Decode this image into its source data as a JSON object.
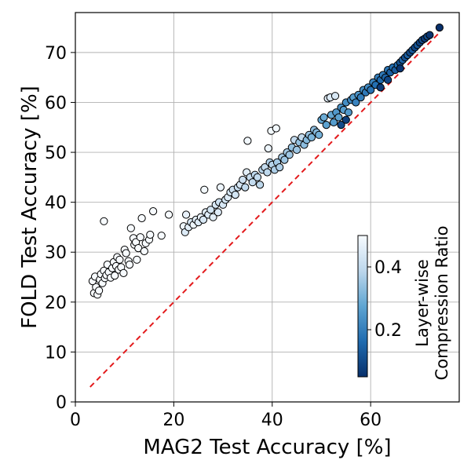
{
  "chart_data": {
    "type": "scatter",
    "title": "",
    "xlabel": "MAG2 Test Accuracy [%]",
    "ylabel": "FOLD Test Accuracy [%]",
    "xlim": [
      0,
      78
    ],
    "ylim": [
      0,
      78
    ],
    "xticks": [
      0,
      20,
      40,
      60
    ],
    "yticks": [
      0,
      10,
      20,
      30,
      40,
      50,
      60,
      70
    ],
    "grid": true,
    "reference_line": {
      "name": "y = x",
      "x": [
        3,
        74
      ],
      "y": [
        3,
        74
      ],
      "color": "#e31a1c",
      "style": "dashed"
    },
    "colorbar": {
      "label": "Layer-wise Compression Ratio",
      "range": [
        0.05,
        0.5
      ],
      "ticks": [
        0.2,
        0.4
      ],
      "colormap": "Blues_r",
      "placement": "lower-right inside"
    },
    "points_format": [
      "MAG2 accuracy",
      "FOLD accuracy",
      "compression ratio"
    ],
    "points": [
      [
        3.8,
        21.8,
        0.5
      ],
      [
        4.2,
        23.0,
        0.5
      ],
      [
        4.5,
        21.5,
        0.5
      ],
      [
        4.8,
        22.3,
        0.5
      ],
      [
        3.5,
        24.2,
        0.5
      ],
      [
        4.0,
        25.1,
        0.5
      ],
      [
        5.0,
        24.5,
        0.5
      ],
      [
        5.5,
        23.8,
        0.5
      ],
      [
        5.2,
        25.6,
        0.5
      ],
      [
        5.8,
        26.3,
        0.5
      ],
      [
        6.0,
        24.8,
        0.5
      ],
      [
        6.3,
        25.4,
        0.5
      ],
      [
        6.5,
        27.5,
        0.5
      ],
      [
        6.8,
        26.0,
        0.5
      ],
      [
        7.2,
        24.9,
        0.5
      ],
      [
        7.5,
        26.8,
        0.5
      ],
      [
        7.8,
        28.0,
        0.5
      ],
      [
        8.0,
        25.3,
        0.5
      ],
      [
        8.3,
        27.2,
        0.5
      ],
      [
        8.5,
        29.0,
        0.5
      ],
      [
        8.8,
        26.5,
        0.5
      ],
      [
        9.0,
        28.5,
        0.5
      ],
      [
        9.3,
        27.0,
        0.5
      ],
      [
        9.8,
        25.8,
        0.5
      ],
      [
        10.0,
        30.5,
        0.5
      ],
      [
        10.3,
        29.8,
        0.5
      ],
      [
        10.8,
        28.2,
        0.5
      ],
      [
        11.0,
        27.5,
        0.5
      ],
      [
        11.3,
        34.8,
        0.5
      ],
      [
        11.8,
        32.8,
        0.5
      ],
      [
        12.0,
        31.5,
        0.5
      ],
      [
        12.3,
        32.0,
        0.5
      ],
      [
        12.5,
        28.5,
        0.5
      ],
      [
        12.8,
        30.8,
        0.5
      ],
      [
        13.2,
        33.0,
        0.5
      ],
      [
        13.5,
        36.8,
        0.5
      ],
      [
        14.0,
        30.2,
        0.5
      ],
      [
        14.3,
        31.8,
        0.5
      ],
      [
        15.0,
        32.5,
        0.5
      ],
      [
        15.2,
        33.5,
        0.5
      ],
      [
        15.8,
        38.2,
        0.5
      ],
      [
        17.5,
        33.3,
        0.5
      ],
      [
        19.0,
        37.5,
        0.5
      ],
      [
        5.8,
        36.2,
        0.5
      ],
      [
        22.0,
        35.2,
        0.48
      ],
      [
        22.3,
        34.0,
        0.45
      ],
      [
        22.5,
        37.5,
        0.47
      ],
      [
        23.0,
        35.0,
        0.46
      ],
      [
        23.5,
        36.0,
        0.44
      ],
      [
        24.0,
        35.5,
        0.48
      ],
      [
        24.5,
        36.5,
        0.46
      ],
      [
        25.0,
        36.0,
        0.45
      ],
      [
        25.5,
        37.0,
        0.47
      ],
      [
        26.0,
        36.5,
        0.44
      ],
      [
        26.2,
        42.5,
        0.49
      ],
      [
        26.5,
        38.0,
        0.46
      ],
      [
        27.0,
        37.5,
        0.45
      ],
      [
        27.5,
        38.5,
        0.43
      ],
      [
        28.0,
        37.0,
        0.46
      ],
      [
        28.5,
        39.5,
        0.44
      ],
      [
        29.0,
        38.0,
        0.45
      ],
      [
        29.2,
        40.0,
        0.42
      ],
      [
        29.5,
        43.0,
        0.48
      ],
      [
        30.0,
        39.5,
        0.44
      ],
      [
        30.5,
        40.5,
        0.43
      ],
      [
        31.0,
        41.0,
        0.45
      ],
      [
        31.5,
        42.0,
        0.44
      ],
      [
        32.0,
        42.5,
        0.42
      ],
      [
        32.5,
        41.5,
        0.43
      ],
      [
        33.0,
        43.0,
        0.41
      ],
      [
        33.5,
        43.5,
        0.44
      ],
      [
        34.0,
        44.5,
        0.42
      ],
      [
        34.5,
        43.0,
        0.4
      ],
      [
        34.8,
        46.0,
        0.46
      ],
      [
        35.0,
        52.3,
        0.49
      ],
      [
        35.5,
        45.0,
        0.41
      ],
      [
        36.0,
        44.0,
        0.4
      ],
      [
        36.5,
        45.5,
        0.39
      ],
      [
        37.0,
        45.0,
        0.4
      ],
      [
        37.5,
        43.5,
        0.39
      ],
      [
        38.0,
        46.5,
        0.38
      ],
      [
        38.5,
        47.0,
        0.4
      ],
      [
        39.0,
        46.0,
        0.39
      ],
      [
        39.2,
        50.8,
        0.48
      ],
      [
        39.5,
        48.0,
        0.37
      ],
      [
        39.8,
        54.3,
        0.49
      ],
      [
        40.0,
        47.5,
        0.38
      ],
      [
        40.5,
        46.5,
        0.37
      ],
      [
        40.8,
        54.8,
        0.49
      ],
      [
        41.0,
        48.0,
        0.36
      ],
      [
        41.5,
        47.0,
        0.37
      ],
      [
        42.0,
        49.0,
        0.36
      ],
      [
        42.5,
        48.5,
        0.35
      ],
      [
        43.0,
        50.0,
        0.36
      ],
      [
        43.5,
        49.5,
        0.35
      ],
      [
        44.0,
        51.0,
        0.34
      ],
      [
        44.5,
        52.5,
        0.4
      ],
      [
        45.0,
        50.5,
        0.35
      ],
      [
        45.5,
        52.0,
        0.34
      ],
      [
        46.0,
        53.0,
        0.4
      ],
      [
        46.5,
        51.5,
        0.33
      ],
      [
        47.0,
        52.5,
        0.32
      ],
      [
        47.5,
        53.5,
        0.34
      ],
      [
        48.0,
        53.0,
        0.31
      ],
      [
        48.5,
        54.5,
        0.33
      ],
      [
        49.0,
        54.0,
        0.32
      ],
      [
        49.5,
        53.5,
        0.3
      ],
      [
        50.0,
        56.5,
        0.28
      ],
      [
        50.5,
        57.0,
        0.29
      ],
      [
        51.0,
        55.5,
        0.27
      ],
      [
        51.3,
        60.8,
        0.46
      ],
      [
        51.8,
        61.0,
        0.45
      ],
      [
        52.0,
        57.5,
        0.28
      ],
      [
        52.5,
        56.0,
        0.26
      ],
      [
        52.8,
        61.3,
        0.44
      ],
      [
        53.0,
        58.0,
        0.25
      ],
      [
        53.5,
        57.0,
        0.27
      ],
      [
        54.0,
        59.0,
        0.24
      ],
      [
        54.5,
        58.5,
        0.26
      ],
      [
        55.0,
        60.0,
        0.23
      ],
      [
        55.5,
        58.0,
        0.25
      ],
      [
        56.0,
        60.5,
        0.22
      ],
      [
        56.5,
        61.0,
        0.26
      ],
      [
        57.0,
        60.0,
        0.21
      ],
      [
        57.5,
        61.5,
        0.24
      ],
      [
        58.0,
        61.0,
        0.2
      ],
      [
        58.5,
        62.5,
        0.23
      ],
      [
        59.0,
        62.0,
        0.19
      ],
      [
        59.5,
        63.0,
        0.22
      ],
      [
        60.0,
        62.5,
        0.18
      ],
      [
        60.5,
        64.0,
        0.21
      ],
      [
        61.0,
        63.5,
        0.17
      ],
      [
        61.5,
        65.0,
        0.2
      ],
      [
        62.0,
        64.5,
        0.16
      ],
      [
        62.5,
        65.5,
        0.19
      ],
      [
        63.0,
        65.0,
        0.15
      ],
      [
        63.5,
        66.5,
        0.18
      ],
      [
        64.0,
        66.0,
        0.14
      ],
      [
        64.5,
        67.0,
        0.17
      ],
      [
        65.0,
        66.5,
        0.13
      ],
      [
        65.5,
        67.5,
        0.16
      ],
      [
        66.0,
        68.0,
        0.12
      ],
      [
        66.5,
        68.5,
        0.15
      ],
      [
        67.0,
        69.0,
        0.11
      ],
      [
        67.5,
        69.5,
        0.14
      ],
      [
        68.0,
        70.0,
        0.1
      ],
      [
        68.5,
        70.5,
        0.13
      ],
      [
        69.0,
        71.0,
        0.09
      ],
      [
        69.5,
        71.5,
        0.12
      ],
      [
        70.0,
        72.0,
        0.08
      ],
      [
        70.5,
        72.5,
        0.11
      ],
      [
        71.0,
        72.8,
        0.07
      ],
      [
        71.5,
        73.2,
        0.1
      ],
      [
        72.0,
        73.5,
        0.06
      ],
      [
        74.0,
        75.0,
        0.05
      ],
      [
        54.0,
        55.5,
        0.1
      ],
      [
        55.0,
        56.5,
        0.08
      ],
      [
        62.0,
        63.0,
        0.07
      ],
      [
        63.5,
        64.5,
        0.09
      ],
      [
        66.0,
        66.8,
        0.06
      ]
    ]
  }
}
